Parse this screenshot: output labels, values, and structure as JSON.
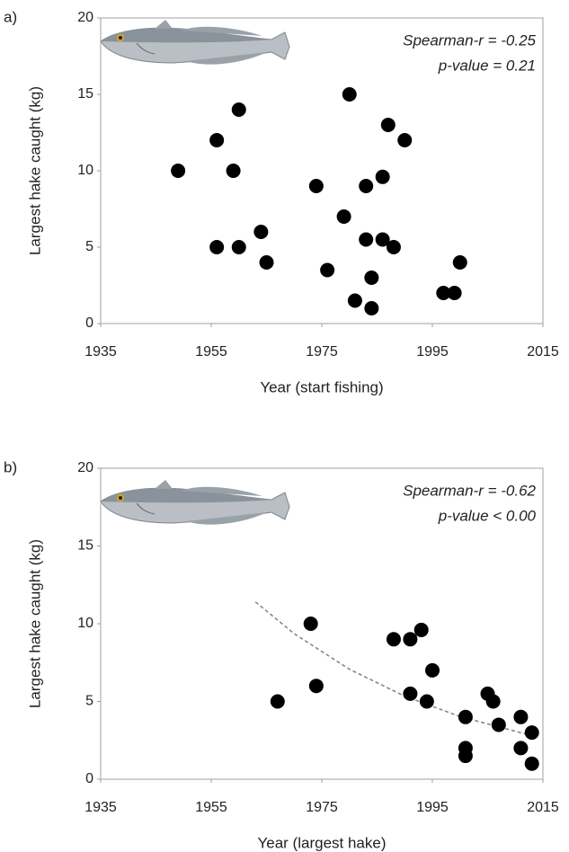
{
  "chart_data": [
    {
      "type": "scatter",
      "panel_label": "a)",
      "xlabel": "Year (start fishing)",
      "ylabel": "Largest hake caught (kg)",
      "annotations": [
        "Spearman-r = -0.25",
        "p-value = 0.21"
      ],
      "color": "#000000",
      "x": [
        1949,
        1956,
        1956,
        1960,
        1959,
        1960,
        1964,
        1965,
        1974,
        1976,
        1979,
        1980,
        1981,
        1983,
        1983,
        1984,
        1984,
        1986,
        1986,
        1987,
        1988,
        1990,
        1997,
        1999,
        2000
      ],
      "y": [
        10,
        12,
        5,
        14,
        10,
        5,
        6,
        4,
        9,
        3.5,
        7,
        15,
        1.5,
        9,
        5.5,
        3,
        1,
        9.6,
        5.5,
        13,
        5,
        12,
        2,
        2,
        4
      ],
      "xlim": [
        1935,
        2015
      ],
      "xticks": [
        1935,
        1955,
        1975,
        1995,
        2015
      ],
      "ylim": [
        0,
        20
      ],
      "yticks": [
        0,
        5,
        10,
        15,
        20
      ]
    },
    {
      "type": "scatter",
      "panel_label": "b)",
      "xlabel": "Year (largest hake)",
      "ylabel": "Largest hake caught (kg)",
      "annotations": [
        "Spearman-r = -0.62",
        "p-value < 0.00"
      ],
      "color": "#000000",
      "x": [
        1967,
        1973,
        1974,
        1988,
        1991,
        1991,
        1993,
        1994,
        1995,
        2001,
        2001,
        2001,
        2005,
        2006,
        2007,
        2011,
        2011,
        2013,
        2013
      ],
      "y": [
        5,
        10,
        6,
        9,
        9,
        5.5,
        9.6,
        5,
        7,
        4,
        2,
        1.5,
        5.5,
        5,
        3.5,
        4,
        2,
        3,
        1
      ],
      "trend": {
        "x": [
          1963,
          1970,
          1980,
          1990,
          2000,
          2013
        ],
        "y": [
          11.4,
          9.36,
          7.07,
          5.34,
          4.03,
          2.8
        ],
        "color": "#808080"
      },
      "xlim": [
        1935,
        2015
      ],
      "xticks": [
        1935,
        1955,
        1975,
        1995,
        2015
      ],
      "ylim": [
        0,
        20
      ],
      "yticks": [
        0,
        5,
        10,
        15,
        20
      ]
    }
  ]
}
